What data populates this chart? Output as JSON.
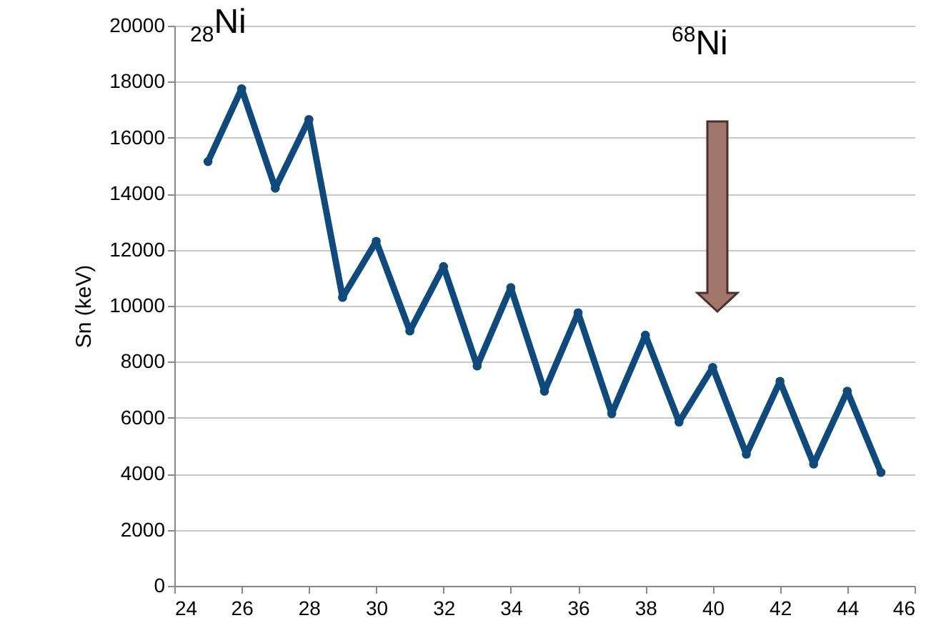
{
  "chart_data": {
    "type": "line",
    "ylabel": "Sn (keV)",
    "annotations": [
      "$_{28}$Ni",
      "$^{68}$Ni"
    ],
    "x": [
      25,
      26,
      27,
      28,
      29,
      30,
      31,
      32,
      33,
      34,
      35,
      36,
      37,
      38,
      39,
      40,
      41,
      42,
      43,
      44,
      45
    ],
    "series": [
      {
        "color": "#0e4a7c",
        "values": [
          15150,
          17750,
          14200,
          16650,
          10300,
          12300,
          9100,
          11400,
          7850,
          10650,
          6950,
          9750,
          6150,
          8950,
          5850,
          7800,
          4700,
          7300,
          4350,
          6950,
          4050
        ]
      }
    ],
    "xlim": [
      24,
      46
    ],
    "xticks": [
      24,
      26,
      28,
      30,
      32,
      34,
      36,
      38,
      40,
      42,
      44,
      46
    ],
    "ylim": [
      0,
      20000
    ],
    "yticks": [
      0,
      2000,
      4000,
      6000,
      8000,
      10000,
      12000,
      14000,
      16000,
      18000,
      20000
    ],
    "grid": "y",
    "marker": "circle",
    "line_style": "solid"
  }
}
